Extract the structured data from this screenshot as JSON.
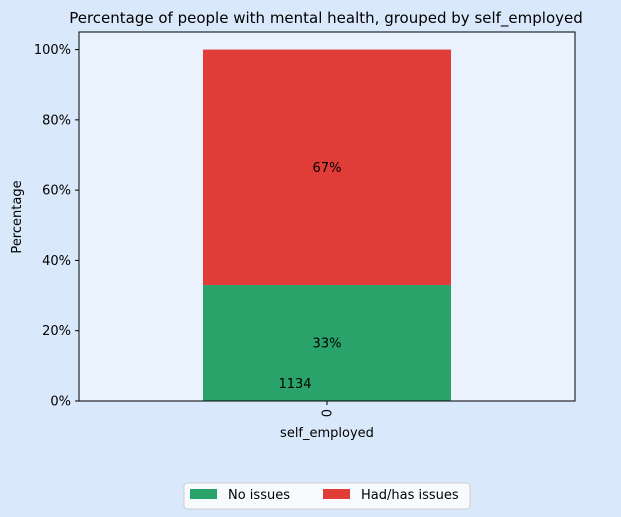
{
  "chart_data": {
    "type": "bar",
    "stacked": true,
    "title": "Percentage of people with mental health, grouped by self_employed",
    "xlabel": "self_employed",
    "ylabel": "Percentage",
    "categories": [
      "0"
    ],
    "ylim": [
      0,
      105
    ],
    "yticks": [
      0,
      20,
      40,
      60,
      80,
      100
    ],
    "ytick_labels": [
      "0%",
      "20%",
      "40%",
      "60%",
      "80%",
      "100%"
    ],
    "series": [
      {
        "name": "No issues",
        "values": [
          33
        ],
        "label": "33%",
        "color": "#29a36a"
      },
      {
        "name": "Had/has issues",
        "values": [
          67
        ],
        "label": "67%",
        "color": "#e03c38"
      }
    ],
    "count_labels": [
      "1134"
    ],
    "legend_position": "bottom-center",
    "grid": false,
    "background_color": "#dae8fb",
    "plot_background_color": "#eaf2fd"
  }
}
